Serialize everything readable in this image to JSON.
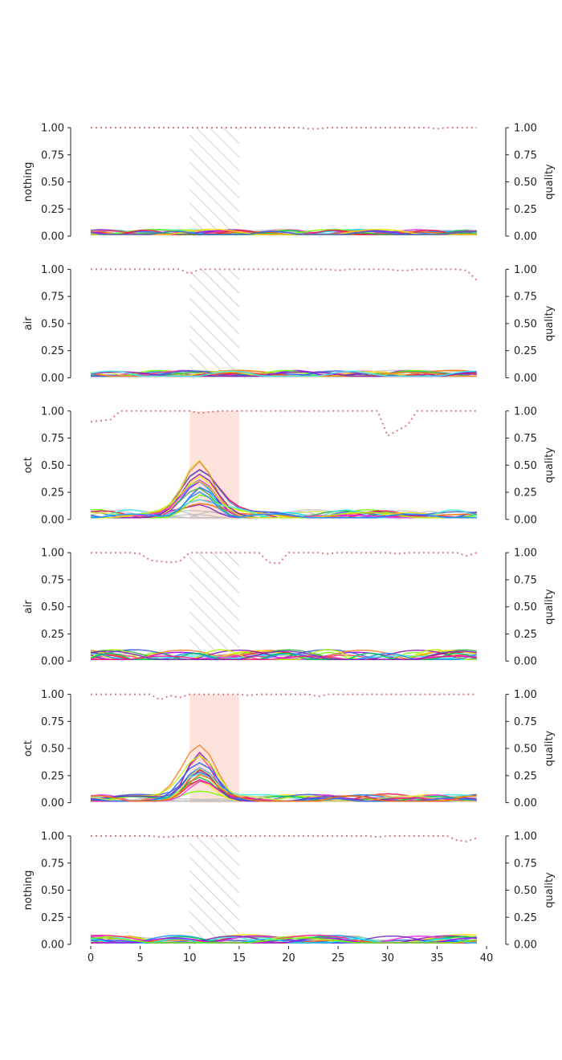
{
  "chart_data": [
    {
      "type": "line",
      "ylabel": "nothing",
      "y2label": "quality",
      "highlight": {
        "kind": "hatched",
        "x_range": [
          10,
          15
        ]
      },
      "quality": [
        1,
        1,
        1,
        1,
        1,
        1,
        1,
        1,
        1,
        1,
        1,
        1,
        1,
        1,
        1,
        1,
        1,
        1,
        1,
        1,
        1,
        1,
        0.99,
        0.99,
        1,
        1,
        1,
        1,
        1,
        1,
        1,
        1,
        1,
        1,
        1,
        0.99,
        1,
        1,
        1,
        1
      ],
      "bump": null,
      "noise_level": 0.05,
      "ylim": [
        0,
        1
      ],
      "y2lim": [
        0,
        1
      ]
    },
    {
      "type": "line",
      "ylabel": "air",
      "y2label": "quality",
      "highlight": {
        "kind": "hatched",
        "x_range": [
          10,
          15
        ]
      },
      "quality": [
        1,
        1,
        1,
        1,
        1,
        1,
        1,
        1,
        1,
        1,
        0.96,
        1,
        1,
        1,
        1,
        1,
        1,
        1,
        1,
        1,
        1,
        1,
        1,
        1,
        1,
        0.99,
        1,
        1,
        1,
        1,
        1,
        0.99,
        0.99,
        1,
        1,
        1,
        1,
        1,
        0.99,
        0.9
      ],
      "bump": null,
      "noise_level": 0.06,
      "ylim": [
        0,
        1
      ],
      "y2lim": [
        0,
        1
      ]
    },
    {
      "type": "line",
      "ylabel": "oct",
      "y2label": "quality",
      "highlight": {
        "kind": "shaded",
        "x_range": [
          10,
          15
        ]
      },
      "quality": [
        0.9,
        0.91,
        0.92,
        1,
        1,
        1,
        1,
        1,
        1,
        1,
        1,
        0.98,
        0.99,
        1,
        1,
        1,
        1,
        1,
        1,
        1,
        1,
        1,
        1,
        1,
        1,
        1,
        1,
        1,
        1,
        1,
        0.77,
        0.82,
        0.87,
        1,
        1,
        1,
        1,
        1,
        1,
        1
      ],
      "bump": {
        "center": 11,
        "max": 0.51
      },
      "noise_level": 0.08,
      "ylim": [
        0,
        1
      ],
      "y2lim": [
        0,
        1
      ]
    },
    {
      "type": "line",
      "ylabel": "air",
      "y2label": "quality",
      "highlight": {
        "kind": "hatched",
        "x_range": [
          10,
          15
        ]
      },
      "quality": [
        1,
        1,
        1,
        1,
        1,
        0.99,
        0.93,
        0.92,
        0.91,
        0.92,
        1,
        1,
        1,
        1,
        1,
        1,
        1,
        1,
        0.91,
        0.9,
        1,
        1,
        1,
        1,
        0.99,
        1,
        1,
        1,
        1,
        1,
        1,
        0.99,
        1,
        1,
        1,
        1,
        1,
        1,
        0.97,
        1
      ],
      "bump": null,
      "noise_level": 0.1,
      "ylim": [
        0,
        1
      ],
      "y2lim": [
        0,
        1
      ]
    },
    {
      "type": "line",
      "ylabel": "oct",
      "y2label": "quality",
      "highlight": {
        "kind": "shaded",
        "x_range": [
          10,
          15
        ]
      },
      "quality": [
        1,
        1,
        1,
        1,
        1,
        1,
        1,
        0.95,
        0.99,
        0.97,
        1,
        1,
        1,
        1,
        1,
        1,
        0.99,
        1,
        1,
        1,
        1,
        1,
        1,
        0.98,
        1,
        1,
        1,
        1,
        1,
        1,
        1,
        1,
        1,
        1,
        1,
        1,
        1,
        1,
        1,
        1
      ],
      "bump": {
        "center": 11,
        "max": 0.48
      },
      "noise_level": 0.07,
      "ylim": [
        0,
        1
      ],
      "y2lim": [
        0,
        1
      ]
    },
    {
      "type": "line",
      "ylabel": "nothing",
      "y2label": "quality",
      "highlight": {
        "kind": "hatched",
        "x_range": [
          10,
          15
        ]
      },
      "quality": [
        1,
        1,
        1,
        1,
        1,
        1,
        1,
        0.99,
        0.99,
        1,
        1,
        1,
        1,
        1,
        1,
        1,
        1,
        1,
        1,
        1,
        1,
        1,
        1,
        1,
        1,
        1,
        1,
        1,
        1,
        0.99,
        1,
        1,
        1,
        1,
        1,
        1,
        1,
        0.96,
        0.95,
        0.98
      ],
      "bump": null,
      "noise_level": 0.08,
      "ylim": [
        0,
        1
      ],
      "y2lim": [
        0,
        1
      ]
    }
  ],
  "axis": {
    "x_ticks": [
      "0",
      "5",
      "10",
      "15",
      "20",
      "25",
      "30",
      "35",
      "40"
    ],
    "y_ticks": [
      "0.00",
      "0.25",
      "0.50",
      "0.75",
      "1.00"
    ],
    "xlim": [
      0,
      40
    ]
  },
  "colors": {
    "quality_line": "#e07b85",
    "shade": "#fde3dc",
    "hatch": "#b0b0b0",
    "gray_trace": "#bdbdbd",
    "palette": [
      "#e6194b",
      "#3cb44b",
      "#ffe119",
      "#4363d8",
      "#f58231",
      "#911eb4",
      "#46f0f0",
      "#f032e6",
      "#bcf60c",
      "#1e90ff",
      "#00c853",
      "#ff1493",
      "#7b2cbf",
      "#d4e157",
      "#2962ff",
      "#ff6d00",
      "#00e5ff",
      "#aa00ff",
      "#76ff03",
      "#ff4081"
    ]
  }
}
